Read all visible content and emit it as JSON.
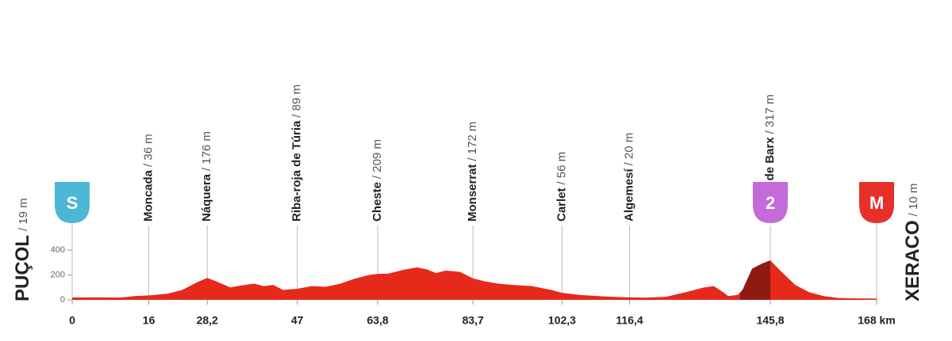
{
  "chart_data": {
    "type": "area",
    "x": [
      0,
      5,
      10,
      13,
      16,
      20,
      23,
      26,
      28.2,
      30,
      33,
      36,
      38,
      40,
      42,
      44,
      47,
      50,
      53,
      56,
      59,
      62,
      63.8,
      66,
      69,
      72,
      74,
      76,
      78,
      81,
      83.7,
      86,
      89,
      92,
      96,
      100,
      102.3,
      106,
      110,
      114,
      116.4,
      120,
      124,
      128,
      132,
      134,
      136,
      137,
      139,
      140,
      142,
      144,
      145.8,
      148,
      151,
      154,
      157,
      160,
      164,
      168
    ],
    "values": [
      19,
      20,
      18,
      30,
      36,
      50,
      80,
      140,
      176,
      150,
      100,
      120,
      130,
      110,
      120,
      80,
      89,
      110,
      105,
      130,
      170,
      200,
      209,
      210,
      240,
      260,
      245,
      215,
      235,
      225,
      172,
      150,
      130,
      120,
      110,
      80,
      56,
      40,
      30,
      22,
      20,
      18,
      25,
      60,
      100,
      110,
      60,
      30,
      40,
      80,
      250,
      290,
      317,
      230,
      120,
      60,
      30,
      15,
      12,
      10
    ],
    "color": "#e52a1c",
    "climb": {
      "start": 139.5,
      "end": 145.8,
      "color": "#8e1b12"
    },
    "xlim": [
      0,
      168
    ],
    "ylim": [
      0,
      400
    ],
    "yticks": [
      0,
      200,
      400
    ],
    "xticks": [
      0,
      16,
      {
        "value": 28.2,
        "label": "28,2"
      },
      47,
      {
        "value": 63.8,
        "label": "63,8"
      },
      {
        "value": 83.7,
        "label": "83,7"
      },
      {
        "value": 102.3,
        "label": "102,3"
      },
      {
        "value": 116.4,
        "label": "116,4"
      },
      {
        "value": 145.8,
        "label": "145,8"
      },
      {
        "value": 168,
        "label": "168 km"
      }
    ],
    "start": {
      "name": "PUÇOL",
      "label": "/ 19 m"
    },
    "finish": {
      "name": "XERACO",
      "label": "/ 10 m"
    },
    "waypoints": [
      {
        "km": 16,
        "name": "Moncada",
        "label": "/ 36 m"
      },
      {
        "km": 28.2,
        "name": "Náquera",
        "label": "/ 176 m"
      },
      {
        "km": 47,
        "name": "Riba-roja de Túria",
        "label": "/ 89 m"
      },
      {
        "km": 63.8,
        "name": "Cheste",
        "label": "/ 209 m"
      },
      {
        "km": 83.7,
        "name": "Monserrat",
        "label": "/ 172 m"
      },
      {
        "km": 102.3,
        "name": "Carlet",
        "label": "/ 56 m"
      },
      {
        "km": 116.4,
        "name": "Algemesí",
        "label": "/ 20 m"
      },
      {
        "km": 145.8,
        "name": "Puerto de Barx",
        "label": "/ 317 m"
      }
    ],
    "markers": [
      {
        "km": 0,
        "label": "S",
        "color": "#4cb6d6"
      },
      {
        "km": 145.8,
        "label": "2",
        "color": "#c46ad9"
      },
      {
        "km": 168,
        "label": "M",
        "color": "#e6302a"
      }
    ]
  }
}
